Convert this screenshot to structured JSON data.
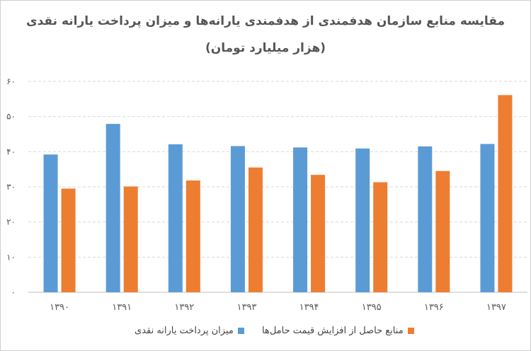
{
  "chart_data": {
    "type": "bar",
    "title": "مقایسه منابع سازمان هدفمندی از هدفمندی یارانه‌ها و میزان پرداخت یارانه نقدی",
    "subtitle": "(هزار میلیارد تومان)",
    "categories": [
      "۱۳۹۰",
      "۱۳۹۱",
      "۱۳۹۲",
      "۱۳۹۳",
      "۱۳۹۴",
      "۱۳۹۵",
      "۱۳۹۶",
      "۱۳۹۷"
    ],
    "series": [
      {
        "name": "میزان پرداخت یارانه نقدی",
        "color": "#5b9bd5",
        "values": [
          39.2,
          47.9,
          42.1,
          41.6,
          41.2,
          40.9,
          41.5,
          42.2
        ]
      },
      {
        "name": "منابع حاصل از افزایش قیمت حامل‌ها",
        "color": "#ed7d31",
        "values": [
          29.5,
          30.1,
          31.8,
          35.5,
          33.4,
          31.3,
          34.5,
          56.1
        ]
      }
    ],
    "y_ticks": [
      "۰",
      "۱۰",
      "۲۰",
      "۳۰",
      "۴۰",
      "۵۰",
      "۶۰"
    ],
    "ylim": [
      0,
      60
    ],
    "grid": true,
    "legend_position": "bottom"
  }
}
